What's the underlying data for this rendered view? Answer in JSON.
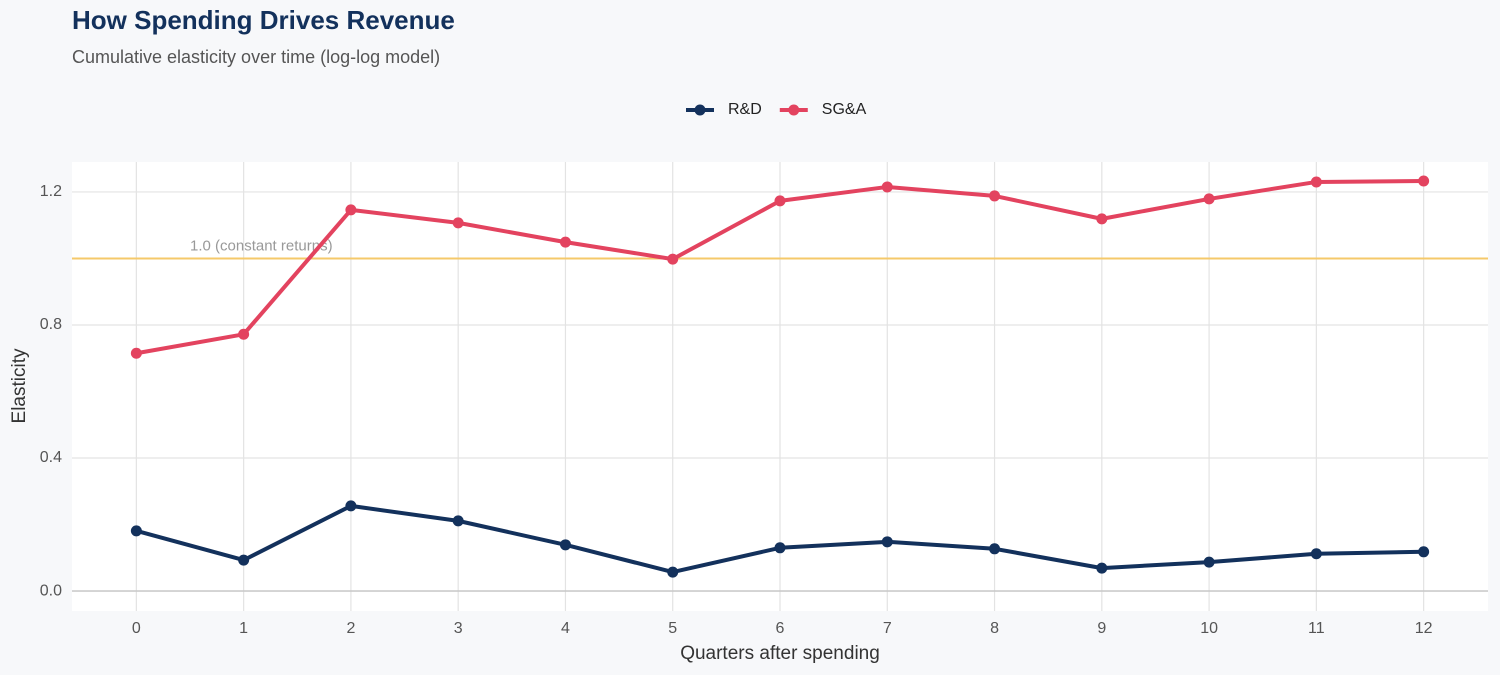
{
  "chart_data": {
    "type": "line",
    "title": "How Spending Drives Revenue",
    "subtitle": "Cumulative elasticity over time (log-log model)",
    "x_label": "Quarters after spending",
    "y_label": "Elasticity",
    "x": [
      0,
      1,
      2,
      3,
      4,
      5,
      6,
      7,
      8,
      9,
      10,
      11,
      12
    ],
    "series": [
      {
        "name": "R&D",
        "color": "#13315c",
        "values": [
          0.181,
          0.093,
          0.256,
          0.211,
          0.139,
          0.057,
          0.13,
          0.148,
          0.127,
          0.069,
          0.087,
          0.112,
          0.118
        ]
      },
      {
        "name": "SG&A",
        "color": "#e3435f",
        "values": [
          0.715,
          0.772,
          1.146,
          1.107,
          1.049,
          0.998,
          1.173,
          1.215,
          1.188,
          1.119,
          1.179,
          1.23,
          1.233
        ]
      }
    ],
    "xlim": [
      -0.6,
      12.6
    ],
    "ylim": [
      -0.06,
      1.29
    ],
    "xticks": [
      0,
      1,
      2,
      3,
      4,
      5,
      6,
      7,
      8,
      9,
      10,
      11,
      12
    ],
    "yticks": [
      {
        "value": 0,
        "label": "0.0"
      },
      0.4,
      0.8,
      1.2
    ],
    "grid": true,
    "legend": "top",
    "reference_line": {
      "value": 1,
      "label": "1.0 (constant returns)",
      "color": "#f5c96a"
    }
  }
}
